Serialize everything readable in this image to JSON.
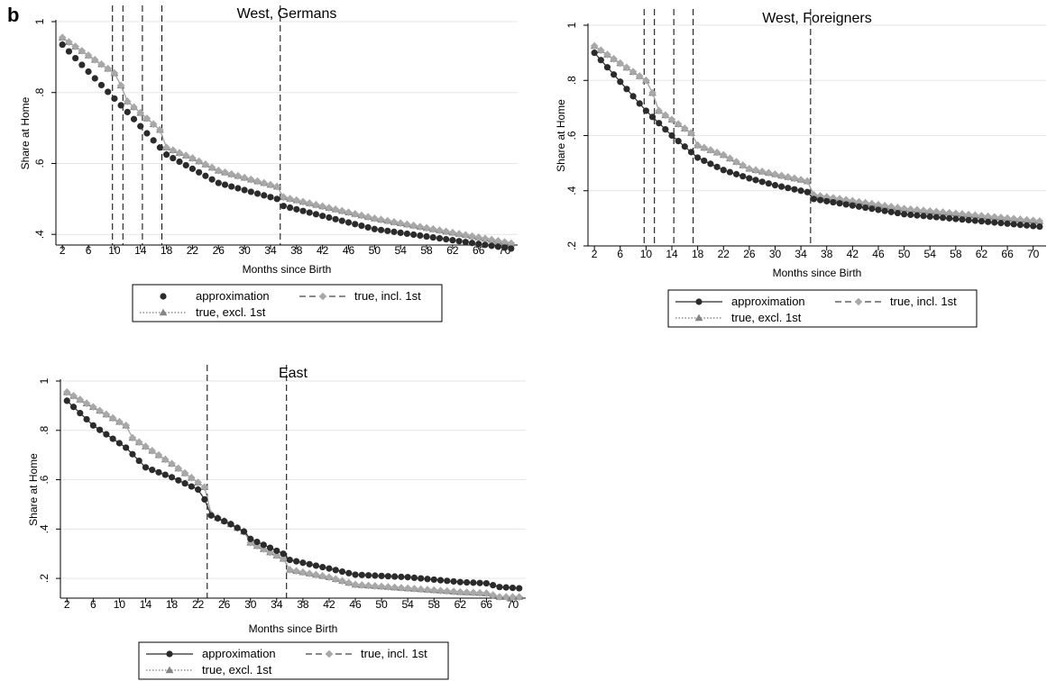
{
  "figure": {
    "panel_letter": "b"
  },
  "legend_labels": {
    "approx": "approximation",
    "incl": "true, incl. 1st",
    "excl": "true, excl. 1st"
  },
  "colors": {
    "approx": "#2b2b2b",
    "incl": "#a8a8a8",
    "excl": "#858585",
    "grid": "#e6e6e6"
  },
  "chart_data": [
    {
      "type": "line",
      "title": "West, Germans",
      "xlabel": "Months since Birth",
      "ylabel": "Share at Home",
      "xlim": [
        1,
        72
      ],
      "ylim": [
        0.37,
        1.0
      ],
      "xticks": [
        2,
        6,
        10,
        14,
        18,
        22,
        26,
        30,
        34,
        38,
        42,
        46,
        50,
        54,
        58,
        62,
        66,
        70
      ],
      "yticks": [
        0.4,
        0.6,
        0.8,
        1.0
      ],
      "ytick_labels": [
        ".4",
        ".6",
        ".8",
        "1"
      ],
      "grid": true,
      "vlines": [
        9.7,
        11.3,
        14.3,
        17.3,
        35.5
      ],
      "approx_markers": false,
      "legend_position": "bottom",
      "series": [
        {
          "name": "approximation",
          "key": "approx",
          "points": [
            [
              2,
              0.935
            ],
            [
              12,
              0.745
            ],
            [
              18,
              0.625
            ],
            [
              26,
              0.545
            ],
            [
              35,
              0.5
            ],
            [
              36,
              0.48
            ],
            [
              50,
              0.415
            ],
            [
              71,
              0.36
            ]
          ]
        },
        {
          "name": "true, incl. 1st",
          "key": "incl",
          "points": [
            [
              2,
              0.955
            ],
            [
              10,
              0.855
            ],
            [
              11,
              0.82
            ],
            [
              12,
              0.775
            ],
            [
              17,
              0.695
            ],
            [
              18,
              0.645
            ],
            [
              22,
              0.615
            ],
            [
              26,
              0.58
            ],
            [
              35,
              0.535
            ],
            [
              36,
              0.505
            ],
            [
              50,
              0.445
            ],
            [
              71,
              0.375
            ]
          ]
        },
        {
          "name": "true, excl. 1st",
          "key": "excl",
          "points": [
            [
              2,
              0.955
            ],
            [
              10,
              0.855
            ],
            [
              11,
              0.82
            ],
            [
              12,
              0.775
            ],
            [
              17,
              0.695
            ],
            [
              18,
              0.645
            ],
            [
              22,
              0.615
            ],
            [
              26,
              0.58
            ],
            [
              35,
              0.535
            ],
            [
              36,
              0.505
            ],
            [
              50,
              0.445
            ],
            [
              71,
              0.375
            ]
          ]
        }
      ]
    },
    {
      "type": "line",
      "title": "West, Foreigners",
      "xlabel": "Months since Birth",
      "ylabel": "Share at Home",
      "xlim": [
        1,
        72
      ],
      "ylim": [
        0.2,
        1.0
      ],
      "xticks": [
        2,
        6,
        10,
        14,
        18,
        22,
        26,
        30,
        34,
        38,
        42,
        46,
        50,
        54,
        58,
        62,
        66,
        70
      ],
      "yticks": [
        0.2,
        0.4,
        0.6,
        0.8,
        1.0
      ],
      "ytick_labels": [
        ".2",
        ".4",
        ".6",
        ".8",
        "1"
      ],
      "grid": true,
      "vlines": [
        9.7,
        11.3,
        14.3,
        17.3,
        35.5
      ],
      "approx_markers": true,
      "legend_position": "bottom",
      "series": [
        {
          "name": "approximation",
          "key": "approx",
          "points": [
            [
              2,
              0.9
            ],
            [
              10,
              0.69
            ],
            [
              14,
              0.6
            ],
            [
              18,
              0.52
            ],
            [
              22,
              0.475
            ],
            [
              26,
              0.445
            ],
            [
              30,
              0.42
            ],
            [
              35,
              0.395
            ],
            [
              36,
              0.37
            ],
            [
              50,
              0.315
            ],
            [
              71,
              0.27
            ]
          ]
        },
        {
          "name": "true, incl. 1st",
          "key": "incl",
          "points": [
            [
              2,
              0.925
            ],
            [
              10,
              0.8
            ],
            [
              11,
              0.755
            ],
            [
              12,
              0.69
            ],
            [
              17,
              0.61
            ],
            [
              18,
              0.565
            ],
            [
              22,
              0.53
            ],
            [
              26,
              0.48
            ],
            [
              35,
              0.435
            ],
            [
              36,
              0.385
            ],
            [
              50,
              0.335
            ],
            [
              71,
              0.29
            ]
          ]
        },
        {
          "name": "true, excl. 1st",
          "key": "excl",
          "points": [
            [
              2,
              0.925
            ],
            [
              10,
              0.8
            ],
            [
              11,
              0.755
            ],
            [
              12,
              0.69
            ],
            [
              17,
              0.61
            ],
            [
              18,
              0.565
            ],
            [
              22,
              0.53
            ],
            [
              26,
              0.48
            ],
            [
              35,
              0.435
            ],
            [
              36,
              0.385
            ],
            [
              50,
              0.335
            ],
            [
              71,
              0.29
            ]
          ]
        }
      ]
    },
    {
      "type": "line",
      "title": "East",
      "xlabel": "Months since Birth",
      "ylabel": "Share at Home",
      "xlim": [
        1,
        72
      ],
      "ylim": [
        0.12,
        1.0
      ],
      "xticks": [
        2,
        6,
        10,
        14,
        18,
        22,
        26,
        30,
        34,
        38,
        42,
        46,
        50,
        54,
        58,
        62,
        66,
        70
      ],
      "yticks": [
        0.2,
        0.4,
        0.6,
        0.8,
        1.0
      ],
      "ytick_labels": [
        ".2",
        ".4",
        ".6",
        ".8",
        "1"
      ],
      "grid": true,
      "vlines": [
        23.4,
        35.5
      ],
      "approx_markers": true,
      "legend_position": "bottom",
      "series": [
        {
          "name": "approximation",
          "key": "approx",
          "points": [
            [
              2,
              0.92
            ],
            [
              6,
              0.82
            ],
            [
              11,
              0.73
            ],
            [
              14,
              0.65
            ],
            [
              18,
              0.61
            ],
            [
              22,
              0.56
            ],
            [
              23,
              0.52
            ],
            [
              24,
              0.455
            ],
            [
              27,
              0.42
            ],
            [
              29,
              0.39
            ],
            [
              30,
              0.36
            ],
            [
              35,
              0.3
            ],
            [
              36,
              0.275
            ],
            [
              42,
              0.24
            ],
            [
              46,
              0.215
            ],
            [
              54,
              0.205
            ],
            [
              62,
              0.185
            ],
            [
              66,
              0.18
            ],
            [
              68,
              0.165
            ],
            [
              71,
              0.16
            ]
          ]
        },
        {
          "name": "true, incl. 1st",
          "key": "incl",
          "points": [
            [
              2,
              0.955
            ],
            [
              11,
              0.82
            ],
            [
              12,
              0.77
            ],
            [
              18,
              0.665
            ],
            [
              23,
              0.57
            ],
            [
              24,
              0.46
            ],
            [
              27,
              0.42
            ],
            [
              29,
              0.39
            ],
            [
              30,
              0.345
            ],
            [
              35,
              0.28
            ],
            [
              36,
              0.235
            ],
            [
              42,
              0.205
            ],
            [
              46,
              0.175
            ],
            [
              54,
              0.16
            ],
            [
              62,
              0.145
            ],
            [
              66,
              0.14
            ],
            [
              68,
              0.125
            ],
            [
              71,
              0.125
            ]
          ]
        },
        {
          "name": "true, excl. 1st",
          "key": "excl",
          "points": [
            [
              2,
              0.955
            ],
            [
              11,
              0.82
            ],
            [
              12,
              0.77
            ],
            [
              18,
              0.665
            ],
            [
              23,
              0.57
            ],
            [
              24,
              0.46
            ],
            [
              27,
              0.42
            ],
            [
              29,
              0.39
            ],
            [
              30,
              0.345
            ],
            [
              35,
              0.28
            ],
            [
              36,
              0.235
            ],
            [
              42,
              0.205
            ],
            [
              46,
              0.175
            ],
            [
              54,
              0.16
            ],
            [
              62,
              0.145
            ],
            [
              66,
              0.14
            ],
            [
              68,
              0.125
            ],
            [
              71,
              0.125
            ]
          ]
        }
      ]
    }
  ]
}
